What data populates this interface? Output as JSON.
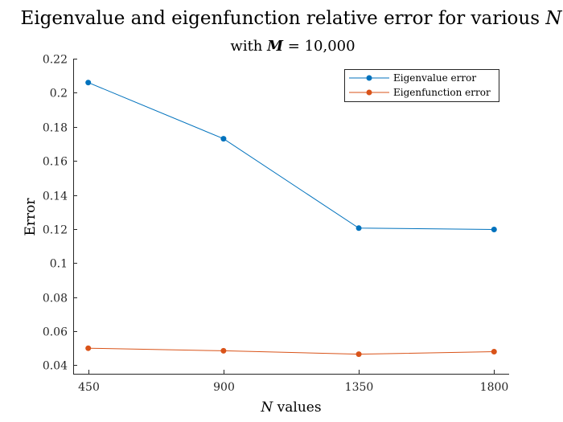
{
  "chart_data": {
    "type": "line",
    "title": {
      "prefix": "Eigenvalue and eigenfunction relative error for various ",
      "variable": "N"
    },
    "subtitle": {
      "prefix": "with ",
      "variable": "M",
      "suffix": " = 10,000"
    },
    "xlabel": {
      "variable": "N",
      "suffix": " values"
    },
    "ylabel": "Error",
    "x": [
      450,
      900,
      1350,
      1800
    ],
    "x_tick_labels": [
      "450",
      "900",
      "1350",
      "1800"
    ],
    "xlim": [
      400,
      1850
    ],
    "ylim": [
      0.035,
      0.22
    ],
    "y_ticks": [
      0.04,
      0.06,
      0.08,
      0.1,
      0.12,
      0.14,
      0.16,
      0.18,
      0.2,
      0.22
    ],
    "y_tick_labels": [
      "0.04",
      "0.06",
      "0.08",
      "0.1",
      "0.12",
      "0.14",
      "0.16",
      "0.18",
      "0.2",
      "0.22"
    ],
    "grid": false,
    "legend_position": "top-right",
    "series": [
      {
        "name": "Eigenvalue error",
        "color": "#0072BD",
        "values": [
          0.206,
          0.173,
          0.1205,
          0.1197
        ]
      },
      {
        "name": "Eigenfunction error",
        "color": "#D95319",
        "values": [
          0.05,
          0.0485,
          0.0465,
          0.048
        ]
      }
    ]
  }
}
